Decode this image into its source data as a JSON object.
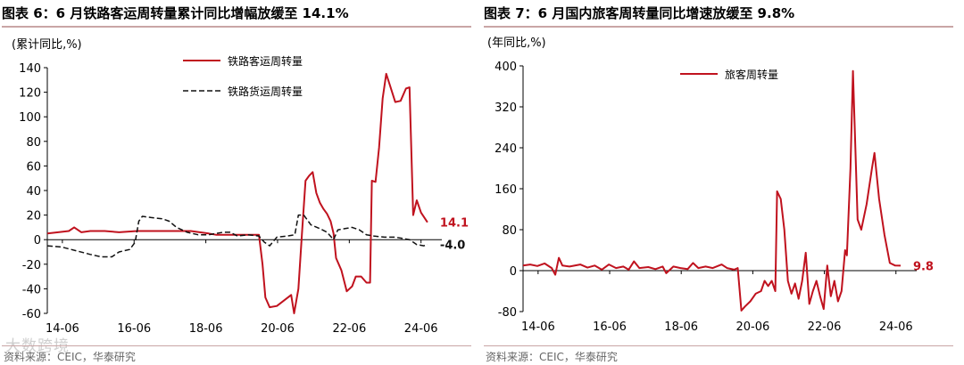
{
  "watermark": "大数跨境",
  "chart_data": [
    {
      "type": "line",
      "figure_label": "图表 6：",
      "title": "6 月铁路客运周转量累计同比增幅放缓至 14.1%",
      "ylabel": "(累计同比,%)",
      "source": "资料来源：CEIC，华泰研究",
      "ylim": [
        -60,
        140
      ],
      "yticks": [
        -60,
        -40,
        -20,
        0,
        20,
        40,
        60,
        80,
        100,
        120,
        140
      ],
      "xlim": [
        2014.0,
        2025.0
      ],
      "xticks": [
        {
          "label": "14-06",
          "value": 2014.42
        },
        {
          "label": "16-06",
          "value": 2016.42
        },
        {
          "label": "18-06",
          "value": 2018.42
        },
        {
          "label": "20-06",
          "value": 2020.42
        },
        {
          "label": "22-06",
          "value": 2022.42
        },
        {
          "label": "24-06",
          "value": 2024.42
        }
      ],
      "legend": "top-center",
      "grid": false,
      "series": [
        {
          "name": "铁路客运周转量",
          "color": "#c0121e",
          "dash": "solid",
          "end_label": "14.1",
          "points": [
            [
              2014.0,
              5
            ],
            [
              2014.3,
              6
            ],
            [
              2014.6,
              7
            ],
            [
              2014.75,
              10
            ],
            [
              2014.95,
              6
            ],
            [
              2015.2,
              7
            ],
            [
              2015.6,
              7
            ],
            [
              2016.0,
              6
            ],
            [
              2016.5,
              7
            ],
            [
              2017.0,
              7
            ],
            [
              2017.5,
              7
            ],
            [
              2018.0,
              7
            ],
            [
              2018.5,
              5
            ],
            [
              2018.7,
              4
            ],
            [
              2019.0,
              4
            ],
            [
              2019.5,
              4
            ],
            [
              2019.9,
              4
            ],
            [
              2020.0,
              -20
            ],
            [
              2020.08,
              -47
            ],
            [
              2020.2,
              -55
            ],
            [
              2020.4,
              -54
            ],
            [
              2020.8,
              -45
            ],
            [
              2020.88,
              -60
            ],
            [
              2021.0,
              -40
            ],
            [
              2021.1,
              5
            ],
            [
              2021.2,
              48
            ],
            [
              2021.3,
              52
            ],
            [
              2021.4,
              55
            ],
            [
              2021.5,
              38
            ],
            [
              2021.6,
              30
            ],
            [
              2021.7,
              25
            ],
            [
              2021.8,
              21
            ],
            [
              2021.9,
              15
            ],
            [
              2021.98,
              5
            ],
            [
              2022.05,
              -15
            ],
            [
              2022.2,
              -25
            ],
            [
              2022.35,
              -42
            ],
            [
              2022.5,
              -38
            ],
            [
              2022.6,
              -30
            ],
            [
              2022.75,
              -30
            ],
            [
              2022.9,
              -35
            ],
            [
              2023.0,
              -35
            ],
            [
              2023.05,
              48
            ],
            [
              2023.15,
              47
            ],
            [
              2023.25,
              75
            ],
            [
              2023.35,
              115
            ],
            [
              2023.45,
              135
            ],
            [
              2023.55,
              126
            ],
            [
              2023.7,
              112
            ],
            [
              2023.85,
              113
            ],
            [
              2024.0,
              123
            ],
            [
              2024.1,
              124
            ],
            [
              2024.2,
              20
            ],
            [
              2024.3,
              32
            ],
            [
              2024.42,
              22
            ],
            [
              2024.6,
              14.1
            ]
          ]
        },
        {
          "name": "铁路货运周转量",
          "color": "#111111",
          "dash": "dashed",
          "end_label": "-4.0",
          "points": [
            [
              2014.0,
              -5
            ],
            [
              2014.4,
              -6
            ],
            [
              2014.8,
              -9
            ],
            [
              2015.2,
              -12
            ],
            [
              2015.5,
              -14
            ],
            [
              2015.8,
              -14
            ],
            [
              2016.0,
              -10
            ],
            [
              2016.3,
              -8
            ],
            [
              2016.45,
              -2
            ],
            [
              2016.55,
              15
            ],
            [
              2016.65,
              19
            ],
            [
              2016.9,
              18
            ],
            [
              2017.2,
              17
            ],
            [
              2017.4,
              15
            ],
            [
              2017.6,
              10
            ],
            [
              2017.9,
              6
            ],
            [
              2018.2,
              4
            ],
            [
              2018.5,
              4
            ],
            [
              2018.7,
              5
            ],
            [
              2018.9,
              6
            ],
            [
              2019.1,
              6
            ],
            [
              2019.3,
              3
            ],
            [
              2019.6,
              4
            ],
            [
              2019.9,
              3
            ],
            [
              2020.05,
              -2
            ],
            [
              2020.2,
              -5
            ],
            [
              2020.4,
              2
            ],
            [
              2020.7,
              3
            ],
            [
              2020.9,
              4
            ],
            [
              2021.0,
              20
            ],
            [
              2021.15,
              20
            ],
            [
              2021.35,
              12
            ],
            [
              2021.6,
              9
            ],
            [
              2021.8,
              6
            ],
            [
              2021.98,
              0
            ],
            [
              2022.1,
              8
            ],
            [
              2022.3,
              9
            ],
            [
              2022.5,
              10
            ],
            [
              2022.7,
              8
            ],
            [
              2022.9,
              4
            ],
            [
              2023.1,
              3
            ],
            [
              2023.4,
              2
            ],
            [
              2023.7,
              2
            ],
            [
              2023.9,
              1
            ],
            [
              2024.1,
              0
            ],
            [
              2024.3,
              -4
            ],
            [
              2024.5,
              -5
            ],
            [
              2024.6,
              -4.0
            ]
          ]
        }
      ]
    },
    {
      "type": "line",
      "figure_label": "图表 7：",
      "title": "6 月国内旅客周转量同比增速放缓至 9.8%",
      "ylabel": "(年同比,%)",
      "source": "资料来源：CEIC，华泰研究",
      "ylim": [
        -80,
        400
      ],
      "yticks": [
        -80,
        0,
        80,
        160,
        240,
        320,
        400
      ],
      "xlim": [
        2014.0,
        2025.0
      ],
      "xticks": [
        {
          "label": "14-06",
          "value": 2014.42
        },
        {
          "label": "16-06",
          "value": 2016.42
        },
        {
          "label": "18-06",
          "value": 2018.42
        },
        {
          "label": "20-06",
          "value": 2020.42
        },
        {
          "label": "22-06",
          "value": 2022.42
        },
        {
          "label": "24-06",
          "value": 2024.42
        }
      ],
      "legend": "top-center",
      "grid": false,
      "series": [
        {
          "name": "旅客周转量",
          "color": "#c0121e",
          "dash": "solid",
          "end_label": "9.8",
          "points": [
            [
              2014.0,
              10
            ],
            [
              2014.2,
              12
            ],
            [
              2014.4,
              9
            ],
            [
              2014.6,
              14
            ],
            [
              2014.8,
              5
            ],
            [
              2014.9,
              -8
            ],
            [
              2015.0,
              25
            ],
            [
              2015.1,
              10
            ],
            [
              2015.3,
              8
            ],
            [
              2015.6,
              12
            ],
            [
              2015.8,
              6
            ],
            [
              2016.0,
              10
            ],
            [
              2016.2,
              2
            ],
            [
              2016.4,
              12
            ],
            [
              2016.6,
              5
            ],
            [
              2016.8,
              8
            ],
            [
              2016.95,
              2
            ],
            [
              2017.1,
              18
            ],
            [
              2017.25,
              5
            ],
            [
              2017.5,
              7
            ],
            [
              2017.7,
              3
            ],
            [
              2017.9,
              8
            ],
            [
              2018.0,
              -5
            ],
            [
              2018.2,
              8
            ],
            [
              2018.4,
              5
            ],
            [
              2018.6,
              3
            ],
            [
              2018.75,
              15
            ],
            [
              2018.9,
              5
            ],
            [
              2019.1,
              8
            ],
            [
              2019.3,
              5
            ],
            [
              2019.55,
              12
            ],
            [
              2019.7,
              5
            ],
            [
              2019.9,
              2
            ],
            [
              2020.0,
              5
            ],
            [
              2020.1,
              -78
            ],
            [
              2020.2,
              -70
            ],
            [
              2020.35,
              -60
            ],
            [
              2020.5,
              -45
            ],
            [
              2020.65,
              -40
            ],
            [
              2020.75,
              -20
            ],
            [
              2020.85,
              -30
            ],
            [
              2020.95,
              -20
            ],
            [
              2021.05,
              -40
            ],
            [
              2021.1,
              155
            ],
            [
              2021.2,
              140
            ],
            [
              2021.3,
              80
            ],
            [
              2021.4,
              -20
            ],
            [
              2021.5,
              -45
            ],
            [
              2021.6,
              -25
            ],
            [
              2021.7,
              -55
            ],
            [
              2021.8,
              -20
            ],
            [
              2021.9,
              35
            ],
            [
              2022.0,
              -65
            ],
            [
              2022.1,
              -40
            ],
            [
              2022.2,
              -20
            ],
            [
              2022.3,
              -50
            ],
            [
              2022.4,
              -75
            ],
            [
              2022.5,
              10
            ],
            [
              2022.6,
              -50
            ],
            [
              2022.7,
              -20
            ],
            [
              2022.8,
              -60
            ],
            [
              2022.9,
              -40
            ],
            [
              2023.0,
              40
            ],
            [
              2023.05,
              30
            ],
            [
              2023.15,
              200
            ],
            [
              2023.22,
              390
            ],
            [
              2023.35,
              100
            ],
            [
              2023.45,
              80
            ],
            [
              2023.6,
              130
            ],
            [
              2023.75,
              200
            ],
            [
              2023.82,
              230
            ],
            [
              2023.95,
              140
            ],
            [
              2024.1,
              70
            ],
            [
              2024.25,
              15
            ],
            [
              2024.4,
              10
            ],
            [
              2024.55,
              9.8
            ]
          ]
        }
      ]
    }
  ]
}
